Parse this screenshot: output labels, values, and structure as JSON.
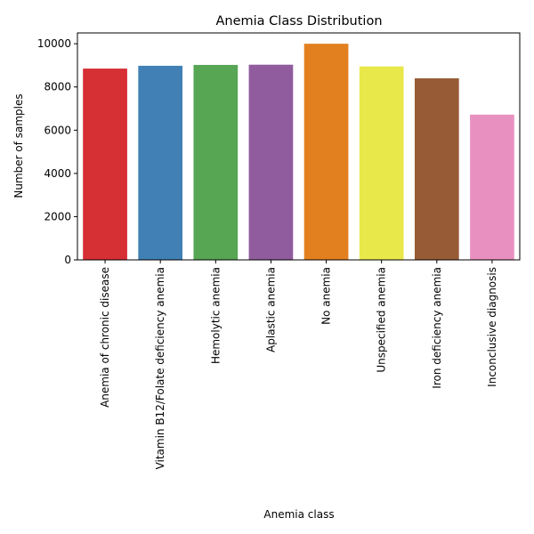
{
  "chart_data": {
    "type": "bar",
    "title": "Anemia Class Distribution",
    "xlabel": "Anemia class",
    "ylabel": "Number of samples",
    "categories": [
      "Anemia of chronic disease",
      "Vitamin B12/Folate deficiency anemia",
      "Hemolytic anemia",
      "Aplastic anemia",
      "No anemia",
      "Unspecified anemia",
      "Iron deficiency anemia",
      "Inconclusive diagnosis"
    ],
    "values": [
      8850,
      8980,
      9020,
      9030,
      10000,
      8950,
      8400,
      6720
    ],
    "colors": [
      "#d62f34",
      "#4180b4",
      "#56a654",
      "#915c9e",
      "#e2801f",
      "#e9e84b",
      "#975b35",
      "#e891c1"
    ],
    "ylim": [
      0,
      10500
    ],
    "yticks": [
      0,
      2000,
      4000,
      6000,
      8000,
      10000
    ],
    "grid": false,
    "legend": "none"
  }
}
